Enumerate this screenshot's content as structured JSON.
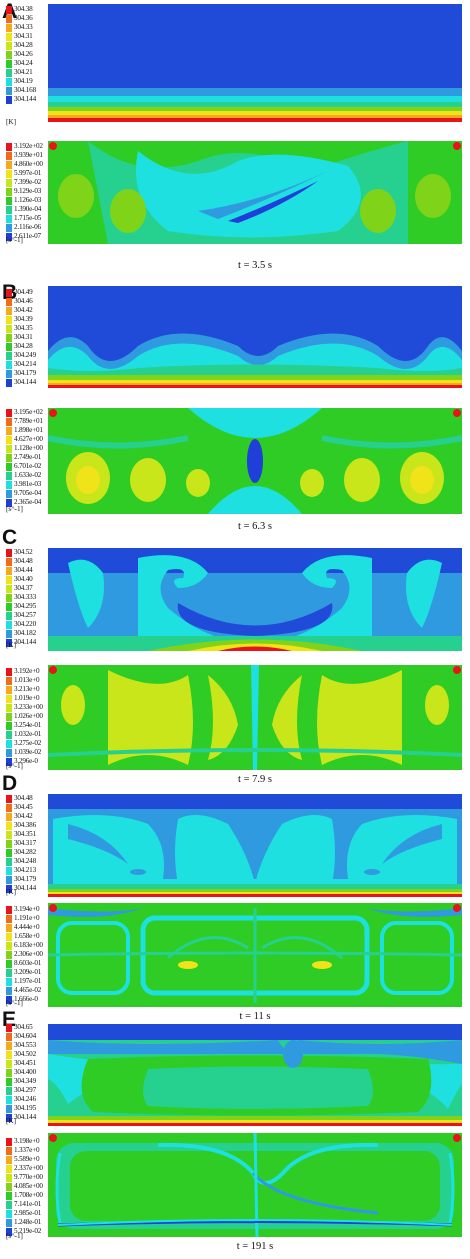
{
  "panels": [
    {
      "letter": "A",
      "time": "t = 3.5 s",
      "temp_unit": "[K]",
      "temp_labels": [
        "304.38",
        "304.36",
        "304.33",
        "304.31",
        "304.28",
        "304.26",
        "304.24",
        "304.21",
        "304.19",
        "304.168",
        "304.144"
      ],
      "rate_unit": "[s^-1]",
      "rate_labels": [
        "3.192e+02",
        "3.939e+01",
        "4.860e+00",
        "5.997e-01",
        "7.399e-02",
        "9.129e-03",
        "1.126e-03",
        "1.390e-04",
        "1.715e-05",
        "2.116e-06",
        "2.611e-07"
      ]
    },
    {
      "letter": "B",
      "time": "t = 6.3 s",
      "temp_unit": "[K]",
      "temp_labels": [
        "304.49",
        "304.46",
        "304.42",
        "304.39",
        "304.35",
        "304.31",
        "304.28",
        "304.249",
        "304.214",
        "304.179",
        "304.144"
      ],
      "rate_unit": "[s^-1]",
      "rate_labels": [
        "3.195e+02",
        "7.789e+01",
        "1.898e+01",
        "4.627e+00",
        "1.128e+00",
        "2.749e-01",
        "6.701e-02",
        "1.633e-02",
        "3.981e-03",
        "9.705e-04",
        "2.365e-04"
      ]
    },
    {
      "letter": "C",
      "time": "t = 7.9 s",
      "temp_unit": "[K]",
      "temp_labels": [
        "304.52",
        "304.48",
        "304.44",
        "304.40",
        "304.37",
        "304.333",
        "304.295",
        "304.257",
        "304.220",
        "304.182",
        "304.144"
      ],
      "rate_unit": "[s^-1]",
      "rate_labels": [
        "3.192e+0",
        "1.013e+0",
        "3.213e+0",
        "1.019e+0",
        "3.233e+00",
        "1.026e+00",
        "3.254e-01",
        "1.032e-01",
        "3.275e-02",
        "1.039e-02",
        "3.296e-0"
      ]
    },
    {
      "letter": "D",
      "time": "t = 11 s",
      "temp_unit": "[K]",
      "temp_labels": [
        "304.48",
        "304.45",
        "304.42",
        "304.386",
        "304.351",
        "304.317",
        "304.282",
        "304.248",
        "304.213",
        "304.179",
        "304.144"
      ],
      "rate_unit": "[s^-1]",
      "rate_labels": [
        "3.194e+0",
        "1.191e+0",
        "4.444e+0",
        "1.658e+0",
        "6.183e+00",
        "2.306e+00",
        "8.603e-01",
        "3.209e-01",
        "1.197e-01",
        "4.465e-02",
        "1.666e-0"
      ]
    },
    {
      "letter": "E",
      "time": "t = 191 s",
      "temp_unit": "[K]",
      "temp_labels": [
        "304.65",
        "304.604",
        "304.553",
        "304.502",
        "304.451",
        "304.400",
        "304.349",
        "304.297",
        "304.246",
        "304.195",
        "304.144"
      ],
      "rate_unit": "[s^-1]",
      "rate_labels": [
        "3.198e+0",
        "1.337e+0",
        "5.589e+0",
        "2.337e+00",
        "9.770e+00",
        "4.085e+00",
        "1.708e+00",
        "7.141e-01",
        "2.985e-01",
        "1.248e-01",
        "5.219e-02"
      ]
    }
  ],
  "colormap": [
    "#e8141a",
    "#f26b1b",
    "#f7a81d",
    "#f0e31a",
    "#c8e61a",
    "#7fd41a",
    "#2fcc25",
    "#26d08e",
    "#1ee0e0",
    "#2f9ae0",
    "#1f3fd8"
  ]
}
